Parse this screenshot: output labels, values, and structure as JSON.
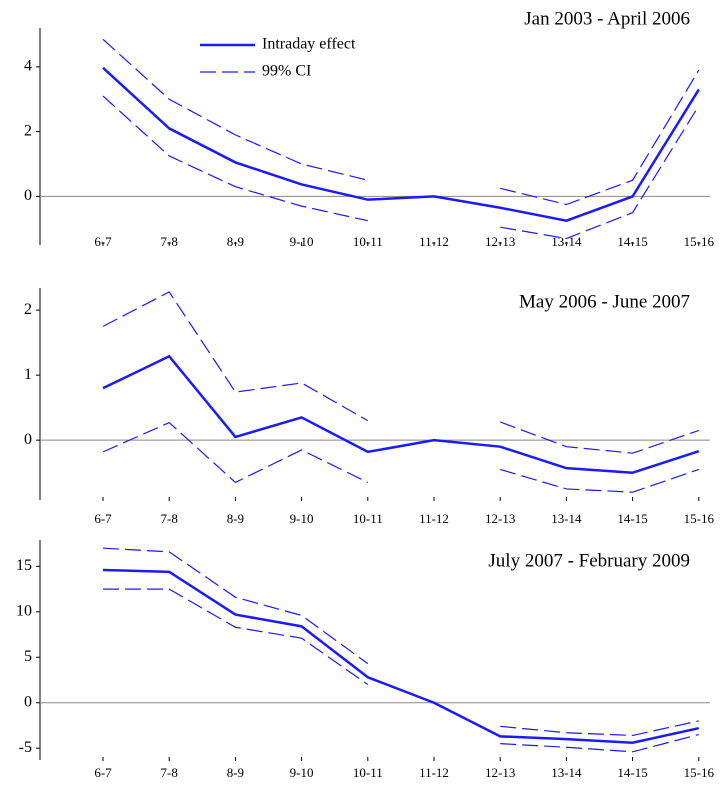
{
  "chart_data": [
    {
      "type": "line",
      "title": "Jan 2003 - April 2006",
      "categories": [
        "6-7",
        "7-8",
        "8-9",
        "9-10",
        "10-11",
        "11-12",
        "12-13",
        "13-14",
        "14-15",
        "15-16"
      ],
      "series": [
        {
          "name": "Intraday effect",
          "color": "#1a1aff",
          "values": [
            3.97,
            2.1,
            1.05,
            0.37,
            -0.1,
            0,
            -0.35,
            -0.75,
            0,
            3.3
          ]
        },
        {
          "name": "99% CI",
          "color": "#1a1aff",
          "dashed": true,
          "upper": [
            4.85,
            3.0,
            1.9,
            1.0,
            0.5,
            null,
            0.25,
            -0.25,
            0.5,
            3.9
          ],
          "lower": [
            3.1,
            1.25,
            0.3,
            -0.3,
            -0.75,
            null,
            -0.95,
            -1.3,
            -0.5,
            2.8
          ]
        }
      ],
      "ylim": [
        -1.5,
        5.2
      ],
      "yticks": [
        0,
        2,
        4
      ],
      "hline": 0,
      "legend": "top-left"
    },
    {
      "type": "line",
      "title": "May 2006 - June 2007",
      "categories": [
        "6-7",
        "7-8",
        "8-9",
        "9-10",
        "10-11",
        "11-12",
        "12-13",
        "13-14",
        "14-15",
        "15-16"
      ],
      "series": [
        {
          "color": "#1a1aff",
          "values": [
            0.8,
            1.29,
            0.05,
            0.35,
            -0.18,
            0,
            -0.1,
            -0.43,
            -0.5,
            -0.17
          ]
        },
        {
          "color": "#1a1aff",
          "dashed": true,
          "upper": [
            1.75,
            2.28,
            0.74,
            0.88,
            0.3,
            null,
            0.28,
            -0.1,
            -0.2,
            0.15
          ],
          "lower": [
            -0.18,
            0.27,
            -0.65,
            -0.15,
            -0.65,
            null,
            -0.45,
            -0.75,
            -0.8,
            -0.45
          ]
        }
      ],
      "ylim": [
        -0.92,
        2.34
      ],
      "yticks": [
        0,
        1,
        2
      ],
      "hline": 0
    },
    {
      "type": "line",
      "title": "July 2007 - February 2009",
      "categories": [
        "6-7",
        "7-8",
        "8-9",
        "9-10",
        "10-11",
        "11-12",
        "12-13",
        "13-14",
        "14-15",
        "15-16"
      ],
      "series": [
        {
          "color": "#1a1aff",
          "values": [
            14.6,
            14.4,
            9.7,
            8.4,
            2.8,
            0,
            -3.7,
            -4.0,
            -4.4,
            -2.8
          ]
        },
        {
          "color": "#1a1aff",
          "dashed": true,
          "upper": [
            17.0,
            16.6,
            11.6,
            9.6,
            4.3,
            null,
            -2.6,
            -3.3,
            -3.6,
            -2.0
          ],
          "lower": [
            12.5,
            12.5,
            8.3,
            7.1,
            2.0,
            null,
            -4.5,
            -4.9,
            -5.4,
            -3.5
          ]
        }
      ],
      "ylim": [
        -6.3,
        17.9
      ],
      "yticks": [
        -5,
        0,
        5,
        10,
        15
      ],
      "hline": 0
    }
  ]
}
